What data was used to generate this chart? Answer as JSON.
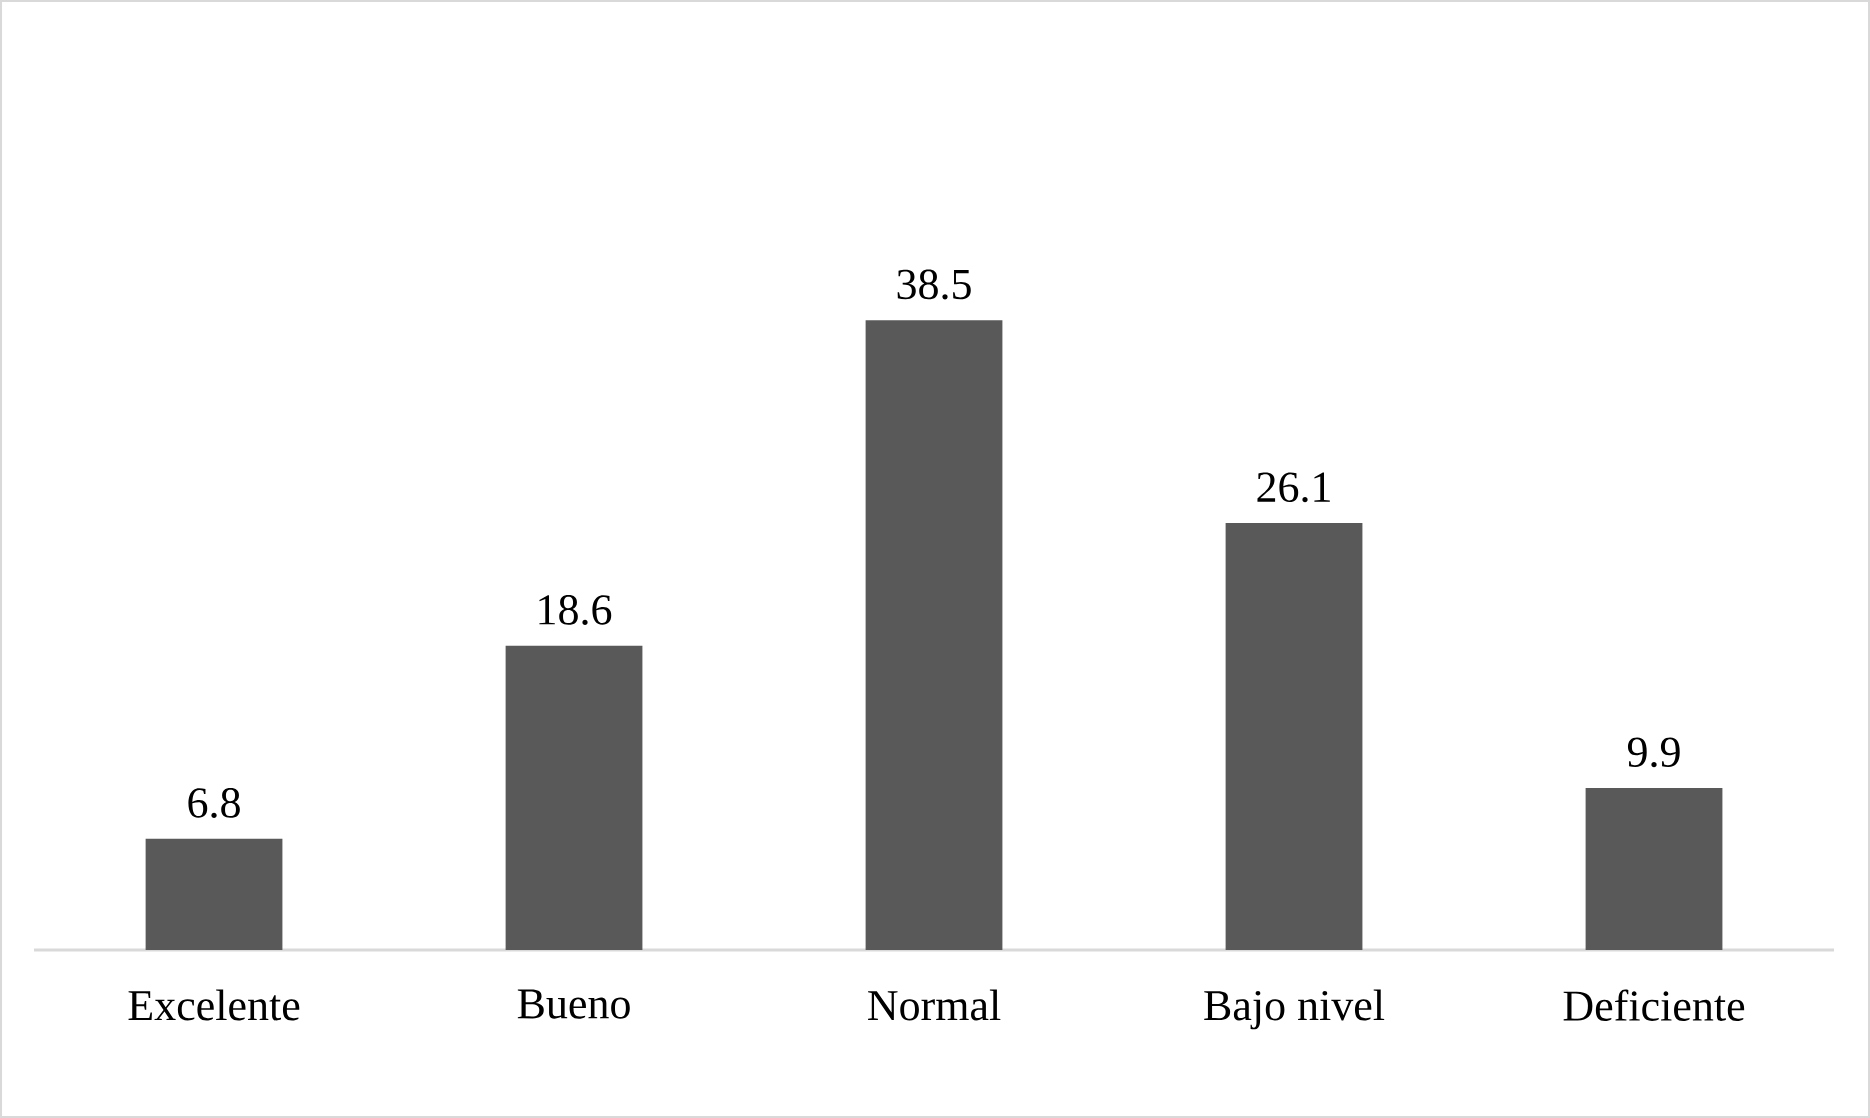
{
  "chart_data": {
    "type": "bar",
    "categories": [
      "Excelente",
      "Bueno",
      "Normal",
      "Bajo nivel",
      "Deficiente"
    ],
    "values": [
      6.8,
      18.6,
      38.5,
      26.1,
      9.9
    ],
    "color": "#595959",
    "data_labels": true
  }
}
